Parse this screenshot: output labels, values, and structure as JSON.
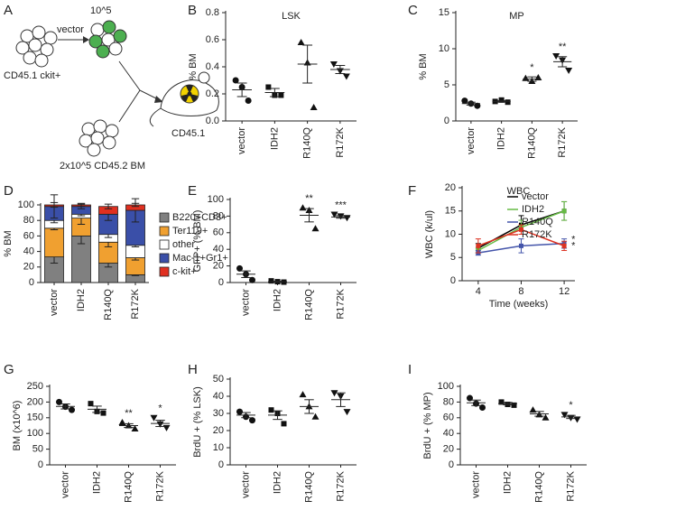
{
  "diagram": {
    "panel": "A",
    "cells_label": "10^5",
    "vector_label": "vector",
    "donor_label": "CD45.1 ckit+",
    "support_label": "2x10^5 CD45.2 BM",
    "recipient_label": "CD45.1"
  },
  "chart_data": [
    {
      "type": "dot",
      "panel": "B",
      "title": "LSK",
      "ylabel": "% BM",
      "categories": [
        "vector",
        "IDH2",
        "R140Q",
        "R172K"
      ],
      "markers": [
        "circle",
        "square",
        "triangle",
        "triangle-down"
      ],
      "points": [
        [
          0.3,
          0.25,
          0.15
        ],
        [
          0.25,
          0.19,
          0.19
        ],
        [
          0.58,
          0.43,
          0.1
        ],
        [
          0.42,
          0.37,
          0.33
        ]
      ],
      "means": [
        0.23,
        0.21,
        0.42,
        0.38
      ],
      "sems": [
        0.05,
        0.03,
        0.14,
        0.03
      ],
      "ylim": [
        0,
        0.8
      ],
      "yticks": [
        {
          "value": 0,
          "label": "0.0"
        },
        0.2,
        0.4,
        0.6,
        0.8
      ],
      "annotations": [
        null,
        null,
        null,
        null
      ]
    },
    {
      "type": "dot",
      "panel": "C",
      "title": "MP",
      "ylabel": "% BM",
      "categories": [
        "vector",
        "IDH2",
        "R140Q",
        "R172K"
      ],
      "markers": [
        "circle",
        "square",
        "triangle",
        "triangle-down"
      ],
      "points": [
        [
          2.8,
          2.4,
          2.1
        ],
        [
          2.7,
          2.9,
          2.6
        ],
        [
          5.9,
          5.5,
          6.0
        ],
        [
          9.0,
          8.4,
          7.0
        ]
      ],
      "means": [
        2.4,
        2.7,
        5.8,
        8.2
      ],
      "sems": [
        0.2,
        0.1,
        0.3,
        0.7
      ],
      "ylim": [
        0,
        15
      ],
      "yticks": [
        0,
        5,
        10,
        15
      ],
      "annotations": [
        null,
        null,
        "*",
        "**"
      ]
    },
    {
      "type": "stacked-bar",
      "panel": "D",
      "ylabel": "% BM",
      "categories": [
        "vector",
        "IDH2",
        "R140Q",
        "R172K"
      ],
      "series": [
        {
          "name": "B220+CD3+",
          "color": "#808080",
          "values": [
            33,
            60,
            25,
            10
          ],
          "errors": [
            8,
            10,
            5,
            1
          ]
        },
        {
          "name": "Ter119+",
          "color": "#f0a030",
          "values": [
            37,
            23,
            27,
            22
          ],
          "errors": [
            2,
            8,
            6,
            3
          ]
        },
        {
          "name": "other",
          "color": "#ffffff",
          "values": [
            10,
            5,
            10,
            16
          ],
          "errors": [
            3,
            2,
            4,
            2
          ]
        },
        {
          "name": "Mac-1+Gr1+",
          "color": "#3a4fa8",
          "values": [
            18,
            10,
            26,
            45
          ],
          "errors": [
            15,
            3,
            8,
            15
          ]
        },
        {
          "name": "c-kit+",
          "color": "#e03020",
          "values": [
            2,
            2,
            10,
            7
          ],
          "errors": [
            3,
            2,
            3,
            2
          ]
        }
      ],
      "ylim": [
        0,
        100
      ],
      "yticks": [
        0,
        20,
        40,
        60,
        80,
        100
      ]
    },
    {
      "type": "dot",
      "panel": "E",
      "ylabel": "GFP+ (% BM)",
      "categories": [
        "vector",
        "IDH2",
        "R140Q",
        "R172K"
      ],
      "markers": [
        "circle",
        "square",
        "triangle",
        "triangle-down"
      ],
      "points": [
        [
          17,
          10,
          3
        ],
        [
          2,
          1,
          0.5
        ],
        [
          90,
          87,
          65
        ],
        [
          82,
          80,
          78
        ]
      ],
      "means": [
        10,
        1,
        81,
        79
      ],
      "sems": [
        4,
        0.5,
        8,
        1.5
      ],
      "ylim": [
        0,
        100
      ],
      "yticks": [
        0,
        20,
        40,
        60,
        80,
        100
      ],
      "annotations": [
        null,
        null,
        "**",
        "***"
      ]
    },
    {
      "type": "line",
      "panel": "F",
      "title": "WBC",
      "ylabel": "WBC (k/ul)",
      "xlabel": "Time (weeks)",
      "x": [
        4,
        8,
        12
      ],
      "series": [
        {
          "name": "vector",
          "color": "#000000",
          "values": [
            7,
            12,
            15
          ],
          "errors": [
            1,
            2,
            2
          ]
        },
        {
          "name": "IDH2",
          "color": "#66bb44",
          "values": [
            6.5,
            11.5,
            15
          ],
          "errors": [
            0.5,
            1.5,
            2
          ]
        },
        {
          "name": "R140Q",
          "color": "#4455aa",
          "values": [
            6,
            7.5,
            8
          ],
          "errors": [
            0.5,
            1.5,
            1
          ]
        },
        {
          "name": "R172K",
          "color": "#dd3322",
          "values": [
            7.5,
            11,
            7.5
          ],
          "errors": [
            1.5,
            1,
            1
          ]
        }
      ],
      "xlim": [
        2.5,
        13
      ],
      "xticks": [
        4,
        8,
        12
      ],
      "ylim": [
        0,
        20
      ],
      "yticks": [
        0,
        5,
        10,
        15,
        20
      ],
      "annotations": [
        null,
        null,
        "*",
        "*"
      ]
    },
    {
      "type": "dot",
      "panel": "G",
      "ylabel": "BM (x10^6)",
      "categories": [
        "vector",
        "IDH2",
        "R140Q",
        "R172K"
      ],
      "markers": [
        "circle",
        "square",
        "triangle",
        "triangle-down"
      ],
      "points": [
        [
          200,
          185,
          175
        ],
        [
          195,
          170,
          165
        ],
        [
          135,
          125,
          115
        ],
        [
          150,
          130,
          118
        ]
      ],
      "means": [
        186,
        177,
        125,
        132
      ],
      "sems": [
        8,
        10,
        6,
        10
      ],
      "ylim": [
        0,
        250
      ],
      "yticks": [
        0,
        50,
        100,
        150,
        200,
        250
      ],
      "annotations": [
        null,
        null,
        "**",
        "*"
      ]
    },
    {
      "type": "dot",
      "panel": "H",
      "ylabel": "BrdU + (% LSK)",
      "categories": [
        "vector",
        "IDH2",
        "R140Q",
        "R172K"
      ],
      "markers": [
        "circle",
        "square",
        "triangle",
        "triangle-down"
      ],
      "points": [
        [
          31,
          28,
          26
        ],
        [
          32,
          30,
          24
        ],
        [
          41,
          34,
          28
        ],
        [
          42,
          40,
          31
        ]
      ],
      "means": [
        29,
        29,
        34,
        38
      ],
      "sems": [
        1.5,
        2.5,
        4,
        4
      ],
      "ylim": [
        0,
        50
      ],
      "yticks": [
        0,
        10,
        20,
        30,
        40,
        50
      ],
      "annotations": [
        null,
        null,
        null,
        null
      ]
    },
    {
      "type": "dot",
      "panel": "I",
      "ylabel": "BrdU + (% MP)",
      "categories": [
        "vector",
        "IDH2",
        "R140Q",
        "R172K"
      ],
      "markers": [
        "circle",
        "square",
        "triangle",
        "triangle-down"
      ],
      "points": [
        [
          85,
          78,
          73
        ],
        [
          80,
          77,
          76
        ],
        [
          70,
          64,
          60
        ],
        [
          64,
          60,
          58
        ]
      ],
      "means": [
        79,
        78,
        65,
        61
      ],
      "sems": [
        3.5,
        1.5,
        3,
        2
      ],
      "ylim": [
        0,
        100
      ],
      "yticks": [
        0,
        20,
        40,
        60,
        80,
        100
      ],
      "annotations": [
        null,
        null,
        null,
        "*"
      ]
    }
  ]
}
